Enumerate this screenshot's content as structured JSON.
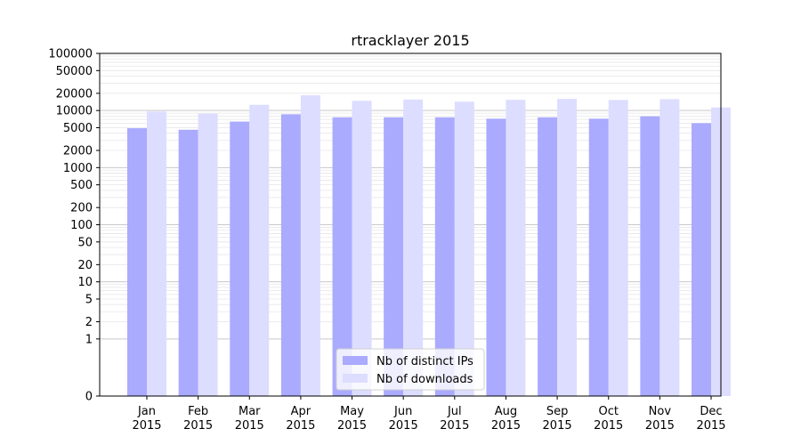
{
  "chart_data": {
    "type": "bar",
    "title": "rtracklayer 2015",
    "xlabel": "",
    "ylabel": "",
    "y_scale": "symlog",
    "ylim": [
      0,
      100000
    ],
    "y_ticks": [
      0,
      1,
      2,
      5,
      10,
      20,
      50,
      100,
      200,
      500,
      1000,
      2000,
      5000,
      10000,
      20000,
      50000,
      100000
    ],
    "grid": true,
    "legend_position": "bottom-center",
    "categories": [
      [
        "Jan",
        "2015"
      ],
      [
        "Feb",
        "2015"
      ],
      [
        "Mar",
        "2015"
      ],
      [
        "Apr",
        "2015"
      ],
      [
        "May",
        "2015"
      ],
      [
        "Jun",
        "2015"
      ],
      [
        "Jul",
        "2015"
      ],
      [
        "Aug",
        "2015"
      ],
      [
        "Sep",
        "2015"
      ],
      [
        "Oct",
        "2015"
      ],
      [
        "Nov",
        "2015"
      ],
      [
        "Dec",
        "2015"
      ]
    ],
    "series": [
      {
        "name": "Nb of distinct IPs",
        "color": "#aaaaff",
        "values": [
          4900,
          4600,
          6400,
          8600,
          7600,
          7600,
          7600,
          7200,
          7600,
          7200,
          7900,
          6000
        ]
      },
      {
        "name": "Nb of downloads",
        "color": "#ddddff",
        "values": [
          9600,
          8800,
          12600,
          18500,
          14800,
          15600,
          14300,
          15400,
          16000,
          15300,
          15800,
          11300
        ]
      }
    ]
  }
}
